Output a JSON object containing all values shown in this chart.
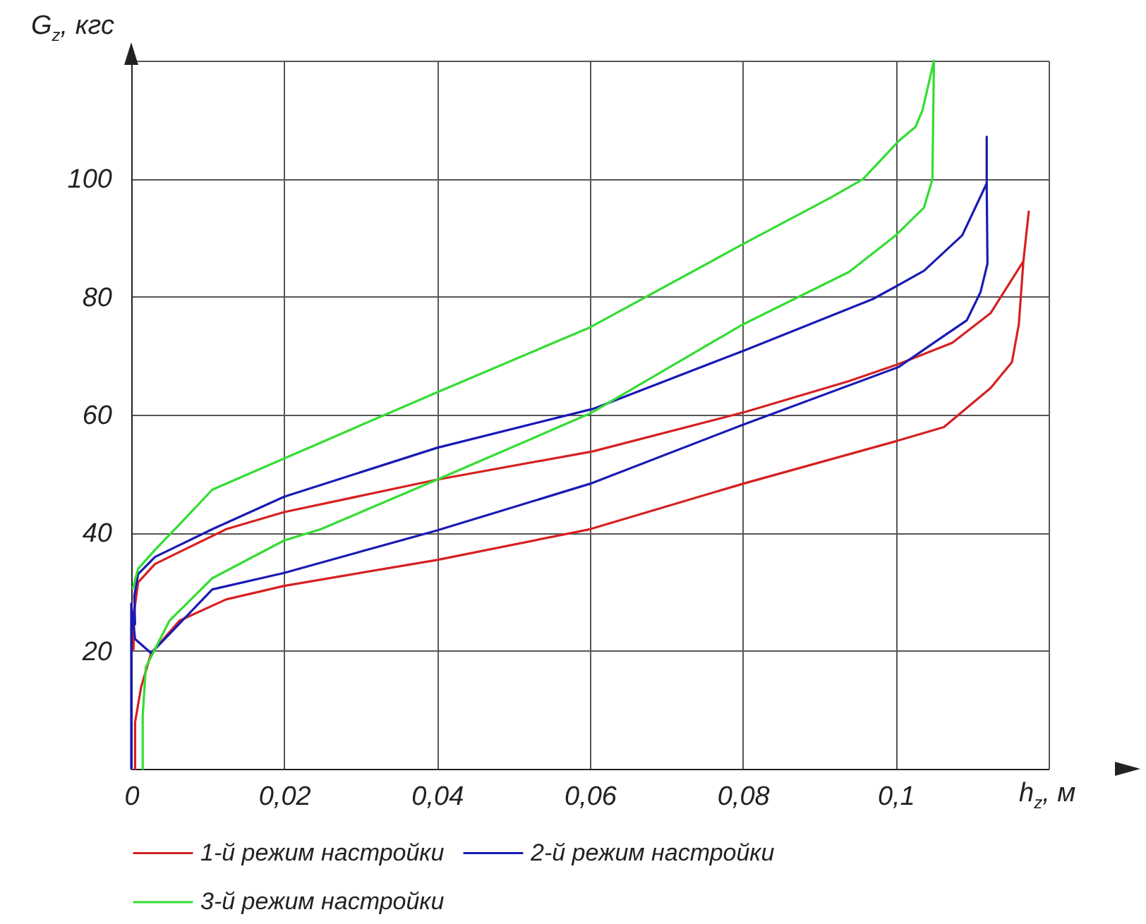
{
  "chart_data": {
    "type": "line",
    "xlabel": "h$_{z}$, м",
    "ylabel": "G$_{z}$, кгс",
    "xlim": [
      0,
      0.12
    ],
    "ylim": [
      0,
      120
    ],
    "xticks": [
      0,
      {
        "value": 0.02,
        "label": "0,02"
      },
      {
        "value": 0.04,
        "label": "0,04"
      },
      {
        "value": 0.06,
        "label": "0,06"
      },
      {
        "value": 0.08,
        "label": "0,08"
      },
      {
        "value": 0.1,
        "label": "0,1"
      },
      {
        "value": 0.12,
        "label": null
      }
    ],
    "yticks": [
      20,
      40,
      60,
      80,
      100,
      {
        "value": 120,
        "label": null
      }
    ],
    "grid": true,
    "legend": "bottom",
    "line_style": "solid",
    "marker": "none",
    "series": [
      {
        "name": "1-й режим настройки",
        "color": "#d62020",
        "x": [
          0.0005,
          0.0005,
          0.0013,
          0.0026,
          0.0063,
          0.0124,
          0.02,
          0.04,
          0.06,
          0.08,
          0.1,
          0.1063,
          0.1124,
          0.1152,
          0.1161,
          0.1167,
          0.1174,
          0.1167,
          0.1124,
          0.1074,
          0.1004,
          0.0939,
          0.0804,
          0.0604,
          0.04,
          0.02,
          0.0124,
          0.0031,
          0.0009,
          0.0004,
          0.0003
        ],
        "values": [
          0,
          7.9,
          13.9,
          19.6,
          25.1,
          28.7,
          31,
          35.4,
          40.6,
          48.3,
          55.5,
          57.9,
          64.5,
          68.9,
          75.3,
          86,
          94.4,
          86,
          77.2,
          72.2,
          68.6,
          65.7,
          60.5,
          53.8,
          49,
          43.5,
          40.6,
          34.7,
          31.6,
          26.8,
          20.3
        ]
      },
      {
        "name": "2-й режим настройки",
        "color": "#1a1ab4",
        "x": [
          0,
          0,
          0.0005,
          0.0026,
          0.0106,
          0.02,
          0.04,
          0.06,
          0.08,
          0.1004,
          0.105,
          0.1093,
          0.1111,
          0.112,
          0.1119,
          0.1119,
          0.1119,
          0.1087,
          0.1037,
          0.1004,
          0.097,
          0.0804,
          0.0604,
          0.04,
          0.02,
          0.0106,
          0.0031,
          0.0009,
          0.0004,
          0.0005
        ],
        "values": [
          0,
          28,
          22,
          19.6,
          30.4,
          33.2,
          40.4,
          48.3,
          58.3,
          68.1,
          72.2,
          76,
          80.8,
          85.6,
          99.2,
          107.1,
          99.2,
          90.4,
          84.4,
          82,
          79.6,
          71,
          61,
          54.4,
          46.1,
          40.6,
          35.9,
          33,
          29.3,
          24.5
        ]
      },
      {
        "name": "3-й режим настройки",
        "color": "#33dd33",
        "x": [
          0.0015,
          0.0015,
          0.0019,
          0.005,
          0.0106,
          0.02,
          0.0248,
          0.04,
          0.06,
          0.08,
          0.0939,
          0.1,
          0.1037,
          0.1048,
          0.105,
          0.1035,
          0.1026,
          0.1004,
          0.0957,
          0.0915,
          0.08,
          0.06,
          0.04,
          0.02,
          0.0106,
          0.0063,
          0.0031,
          0.0009,
          0.0002
        ],
        "values": [
          0,
          9,
          17.2,
          25.1,
          32.3,
          38.7,
          40.6,
          49,
          60.2,
          75.3,
          84.2,
          90.4,
          95.1,
          99.9,
          120,
          111.6,
          108.8,
          106.4,
          99.9,
          96.8,
          88.9,
          74.8,
          63.8,
          52.6,
          47.3,
          41.4,
          37.1,
          33.9,
          30.6
        ]
      }
    ]
  }
}
